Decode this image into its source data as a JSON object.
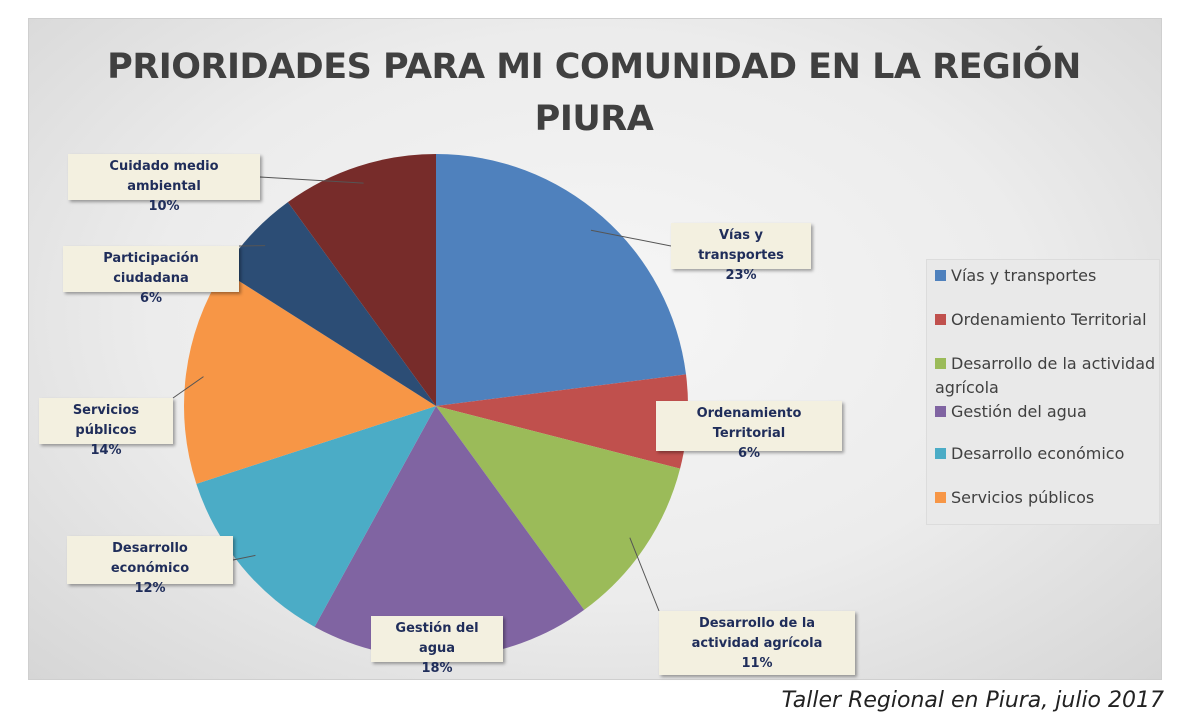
{
  "chart_data": {
    "type": "pie",
    "title": "PRIORIDADES PARA MI COMUNIDAD EN LA REGIÓN PIURA",
    "start_angle_deg": 0,
    "direction": "clockwise",
    "slices": [
      {
        "label": "Vías y transportes",
        "value": 23,
        "display": "23%",
        "color": "#4f81bd"
      },
      {
        "label": "Ordenamiento Territorial",
        "value": 6,
        "display": "6%",
        "color": "#c0504d"
      },
      {
        "label": "Desarrollo de la actividad agrícola",
        "value": 11,
        "display": "11%",
        "color": "#9bbb59"
      },
      {
        "label": "Gestión del agua",
        "value": 18,
        "display": "18%",
        "color": "#8064a2"
      },
      {
        "label": "Desarrollo económico",
        "value": 12,
        "display": "12%",
        "color": "#4bacc6"
      },
      {
        "label": "Servicios públicos",
        "value": 14,
        "display": "14%",
        "color": "#f79646"
      },
      {
        "label": "Participación ciudadana",
        "value": 6,
        "display": "6%",
        "color": "#2c4d75"
      },
      {
        "label": "Cuidado medio ambiental",
        "value": 10,
        "display": "10%",
        "color": "#772c2a"
      }
    ],
    "legend": {
      "placement": "right",
      "entries": [
        "Vías y transportes",
        "Ordenamiento Territorial",
        "Desarrollo de la actividad agrícola",
        "Gestión del agua",
        "Desarrollo económico",
        "Servicios públicos"
      ]
    }
  },
  "caption": "Taller Regional en Piura, julio 2017"
}
